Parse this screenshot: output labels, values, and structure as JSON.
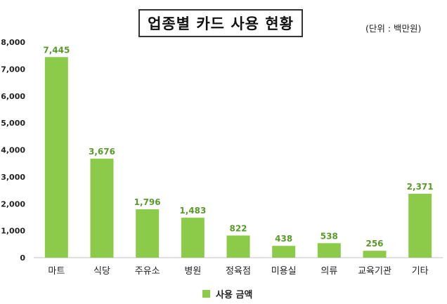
{
  "chart_data": {
    "type": "bar",
    "title": "업종별 카드 사용 현황",
    "unit_note": "(단위 : 백만원)",
    "categories": [
      "마트",
      "식당",
      "주유소",
      "병원",
      "정육점",
      "미용실",
      "의류",
      "교육기관",
      "기타"
    ],
    "series": [
      {
        "name": "사용 금액",
        "values": [
          7445,
          3676,
          1796,
          1483,
          822,
          438,
          538,
          256,
          2371
        ],
        "data_labels": [
          "7,445",
          "3,676",
          "1,796",
          "1,483",
          "822",
          "438",
          "538",
          "256",
          "2,371"
        ]
      }
    ],
    "ylim": [
      0,
      8000
    ],
    "y_ticks": [
      "0",
      "1,000",
      "2,000",
      "3,000",
      "4,000",
      "5,000",
      "6,000",
      "7,000",
      "8,000"
    ],
    "grid": false,
    "legend_position": "bottom",
    "colors": {
      "bar": "#8CCB4A",
      "label": "#5A9A2A",
      "axis": "#BFBFBF"
    }
  }
}
